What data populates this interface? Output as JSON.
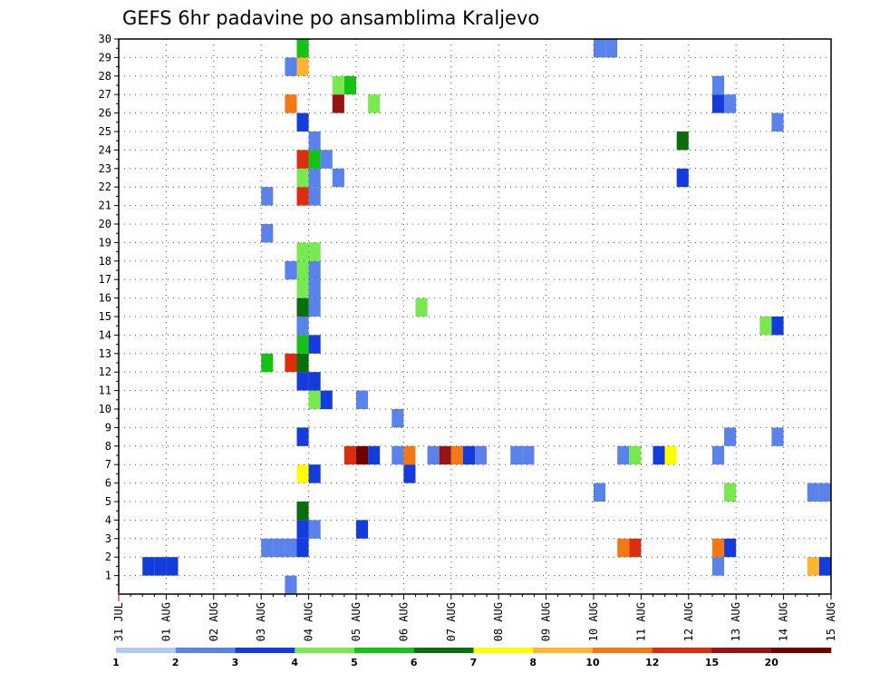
{
  "chart_data": {
    "type": "heatmap",
    "title": "GEFS 6hr padavine po ansamblima Kraljevo",
    "xlabel": "",
    "ylabel": "",
    "x_ticks": [
      "31 JUL",
      "01 AUG",
      "02 AUG",
      "03 AUG",
      "04 AUG",
      "05 AUG",
      "06 AUG",
      "07 AUG",
      "08 AUG",
      "09 AUG",
      "10 AUG",
      "11 AUG",
      "12 AUG",
      "13 AUG",
      "14 AUG",
      "15 AUG"
    ],
    "y_ticks": [
      1,
      2,
      3,
      4,
      5,
      6,
      7,
      8,
      9,
      10,
      11,
      12,
      13,
      14,
      15,
      16,
      17,
      18,
      19,
      20,
      21,
      22,
      23,
      24,
      25,
      26,
      27,
      28,
      29,
      30
    ],
    "xlim_steps": [
      0,
      60
    ],
    "ylim": [
      0,
      30
    ],
    "grid": true,
    "colorbar": {
      "placement": "bottom",
      "labels": [
        "1",
        "2",
        "3",
        "4",
        "5",
        "6",
        "7",
        "8",
        "10",
        "12",
        "15",
        "20"
      ],
      "colors": [
        "#b4c8f5",
        "#5a82eb",
        "#143cdc",
        "#78ea50",
        "#14c314",
        "#0a6e0a",
        "#ffff00",
        "#ffb432",
        "#f57814",
        "#dc2d0f",
        "#961414",
        "#6e0000"
      ]
    },
    "cells": [
      {
        "m": 1,
        "t": 2,
        "v": 3
      },
      {
        "m": 1,
        "t": 3,
        "v": 3
      },
      {
        "m": 1,
        "t": 4,
        "v": 3
      },
      {
        "m": 1,
        "t": 50,
        "v": 2
      },
      {
        "m": 1,
        "t": 58,
        "v": 8
      },
      {
        "m": 1,
        "t": 59,
        "v": 3
      },
      {
        "m": 2,
        "t": 12,
        "v": 2
      },
      {
        "m": 2,
        "t": 13,
        "v": 2
      },
      {
        "m": 2,
        "t": 14,
        "v": 2
      },
      {
        "m": 2,
        "t": 15,
        "v": 3
      },
      {
        "m": 2,
        "t": 42,
        "v": 9
      },
      {
        "m": 2,
        "t": 43,
        "v": 10
      },
      {
        "m": 2,
        "t": 50,
        "v": 9
      },
      {
        "m": 2,
        "t": 51,
        "v": 3
      },
      {
        "m": 3,
        "t": 15,
        "v": 3
      },
      {
        "m": 3,
        "t": 16,
        "v": 2
      },
      {
        "m": 3,
        "t": 20,
        "v": 3
      },
      {
        "m": 4,
        "t": 15,
        "v": 6
      },
      {
        "m": 5,
        "t": 40,
        "v": 2
      },
      {
        "m": 5,
        "t": 51,
        "v": 4
      },
      {
        "m": 5,
        "t": 58,
        "v": 2
      },
      {
        "m": 5,
        "t": 59,
        "v": 2
      },
      {
        "m": 6,
        "t": 15,
        "v": 7
      },
      {
        "m": 6,
        "t": 16,
        "v": 3
      },
      {
        "m": 6,
        "t": 24,
        "v": 3
      },
      {
        "m": 7,
        "t": 19,
        "v": 10
      },
      {
        "m": 7,
        "t": 20,
        "v": 12
      },
      {
        "m": 7,
        "t": 21,
        "v": 3
      },
      {
        "m": 7,
        "t": 23,
        "v": 2
      },
      {
        "m": 7,
        "t": 24,
        "v": 9
      },
      {
        "m": 7,
        "t": 26,
        "v": 2
      },
      {
        "m": 7,
        "t": 27,
        "v": 11
      },
      {
        "m": 7,
        "t": 28,
        "v": 9
      },
      {
        "m": 7,
        "t": 29,
        "v": 3
      },
      {
        "m": 7,
        "t": 30,
        "v": 2
      },
      {
        "m": 7,
        "t": 33,
        "v": 2
      },
      {
        "m": 7,
        "t": 34,
        "v": 2
      },
      {
        "m": 7,
        "t": 42,
        "v": 2
      },
      {
        "m": 7,
        "t": 43,
        "v": 4
      },
      {
        "m": 7,
        "t": 45,
        "v": 3
      },
      {
        "m": 7,
        "t": 46,
        "v": 7
      },
      {
        "m": 7,
        "t": 50,
        "v": 2
      },
      {
        "m": 8,
        "t": 15,
        "v": 3
      },
      {
        "m": 8,
        "t": 51,
        "v": 2
      },
      {
        "m": 8,
        "t": 55,
        "v": 2
      },
      {
        "m": 9,
        "t": 23,
        "v": 2
      },
      {
        "m": 10,
        "t": 16,
        "v": 4
      },
      {
        "m": 10,
        "t": 17,
        "v": 3
      },
      {
        "m": 10,
        "t": 20,
        "v": 2
      },
      {
        "m": 11,
        "t": 15,
        "v": 3
      },
      {
        "m": 11,
        "t": 16,
        "v": 3
      },
      {
        "m": 12,
        "t": 12,
        "v": 5
      },
      {
        "m": 12,
        "t": 14,
        "v": 10
      },
      {
        "m": 12,
        "t": 15,
        "v": 6
      },
      {
        "m": 13,
        "t": 15,
        "v": 5
      },
      {
        "m": 13,
        "t": 16,
        "v": 3
      },
      {
        "m": 14,
        "t": 15,
        "v": 2
      },
      {
        "m": 14,
        "t": 54,
        "v": 4
      },
      {
        "m": 14,
        "t": 55,
        "v": 3
      },
      {
        "m": 15,
        "t": 15,
        "v": 6
      },
      {
        "m": 15,
        "t": 16,
        "v": 2
      },
      {
        "m": 15,
        "t": 25,
        "v": 4
      },
      {
        "m": 16,
        "t": 15,
        "v": 4
      },
      {
        "m": 16,
        "t": 16,
        "v": 2
      },
      {
        "m": 17,
        "t": 14,
        "v": 2
      },
      {
        "m": 17,
        "t": 15,
        "v": 4
      },
      {
        "m": 17,
        "t": 16,
        "v": 2
      },
      {
        "m": 18,
        "t": 15,
        "v": 4
      },
      {
        "m": 18,
        "t": 16,
        "v": 4
      },
      {
        "m": 19,
        "t": 12,
        "v": 2
      },
      {
        "m": 21,
        "t": 12,
        "v": 2
      },
      {
        "m": 21,
        "t": 15,
        "v": 10
      },
      {
        "m": 21,
        "t": 16,
        "v": 2
      },
      {
        "m": 22,
        "t": 15,
        "v": 4
      },
      {
        "m": 22,
        "t": 16,
        "v": 2
      },
      {
        "m": 22,
        "t": 18,
        "v": 2
      },
      {
        "m": 22,
        "t": 47,
        "v": 3
      },
      {
        "m": 23,
        "t": 15,
        "v": 10
      },
      {
        "m": 23,
        "t": 16,
        "v": 5
      },
      {
        "m": 23,
        "t": 17,
        "v": 2
      },
      {
        "m": 24,
        "t": 16,
        "v": 2
      },
      {
        "m": 24,
        "t": 47,
        "v": 6
      },
      {
        "m": 25,
        "t": 15,
        "v": 3
      },
      {
        "m": 25,
        "t": 55,
        "v": 2
      },
      {
        "m": 26,
        "t": 14,
        "v": 9
      },
      {
        "m": 26,
        "t": 18,
        "v": 11
      },
      {
        "m": 26,
        "t": 21,
        "v": 4
      },
      {
        "m": 26,
        "t": 50,
        "v": 3
      },
      {
        "m": 26,
        "t": 51,
        "v": 2
      },
      {
        "m": 27,
        "t": 18,
        "v": 4
      },
      {
        "m": 27,
        "t": 19,
        "v": 5
      },
      {
        "m": 27,
        "t": 50,
        "v": 2
      },
      {
        "m": 28,
        "t": 14,
        "v": 2
      },
      {
        "m": 28,
        "t": 15,
        "v": 8
      },
      {
        "m": 29,
        "t": 15,
        "v": 5
      },
      {
        "m": 29,
        "t": 40,
        "v": 2
      },
      {
        "m": 29,
        "t": 41,
        "v": 2
      },
      {
        "m": 0,
        "t": 14,
        "v": 2
      }
    ]
  }
}
